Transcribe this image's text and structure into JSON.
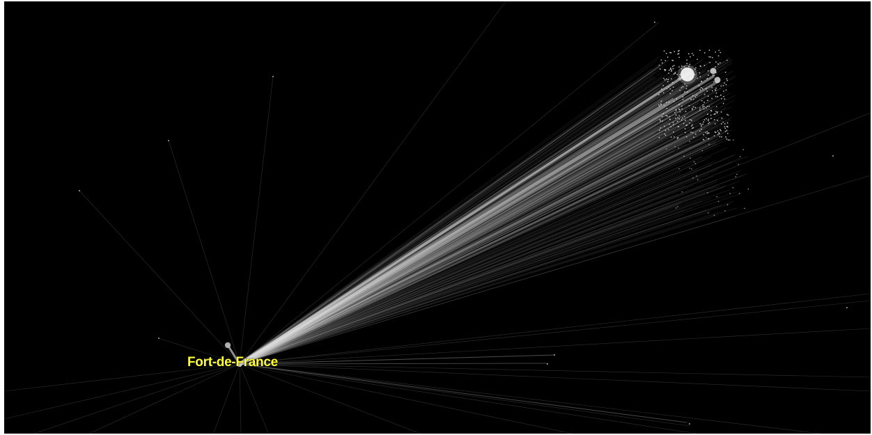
{
  "map": {
    "background_color": "#000000",
    "flow_color": "#dcdcdc",
    "label_color": "#ffff33",
    "focus_city": {
      "label": "Fort-de-France"
    }
  }
}
